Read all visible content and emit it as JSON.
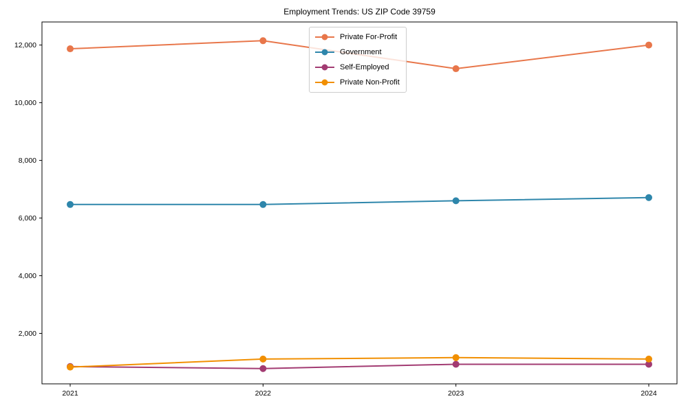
{
  "title": "Employment Trends: US ZIP Code 39759",
  "chart_data": {
    "type": "line",
    "title": "Employment Trends: US ZIP Code 39759",
    "xlabel": "",
    "ylabel": "",
    "categories": [
      "2021",
      "2022",
      "2023",
      "2024"
    ],
    "x": [
      2021,
      2022,
      2023,
      2024
    ],
    "series": [
      {
        "name": "Private For-Profit",
        "color": "#e8764a",
        "values": [
          11870,
          12150,
          11180,
          12000
        ]
      },
      {
        "name": "Government",
        "color": "#2e86ab",
        "values": [
          6470,
          6470,
          6600,
          6710
        ]
      },
      {
        "name": "Self-Employed",
        "color": "#a23b72",
        "values": [
          850,
          780,
          930,
          930
        ]
      },
      {
        "name": "Private Non-Profit",
        "color": "#f18f01",
        "values": [
          830,
          1110,
          1160,
          1110
        ]
      }
    ],
    "ylim": [
      250,
      12800
    ],
    "yticks": [
      2000,
      4000,
      6000,
      8000,
      10000,
      12000
    ],
    "ytick_labels": [
      "2,000",
      "4,000",
      "6,000",
      "8,000",
      "10,000",
      "12,000"
    ],
    "grid": false,
    "legend_position": "top-center",
    "axis_color": "#000000",
    "tick_label_color": "#000000",
    "background_color": "#ffffff"
  }
}
